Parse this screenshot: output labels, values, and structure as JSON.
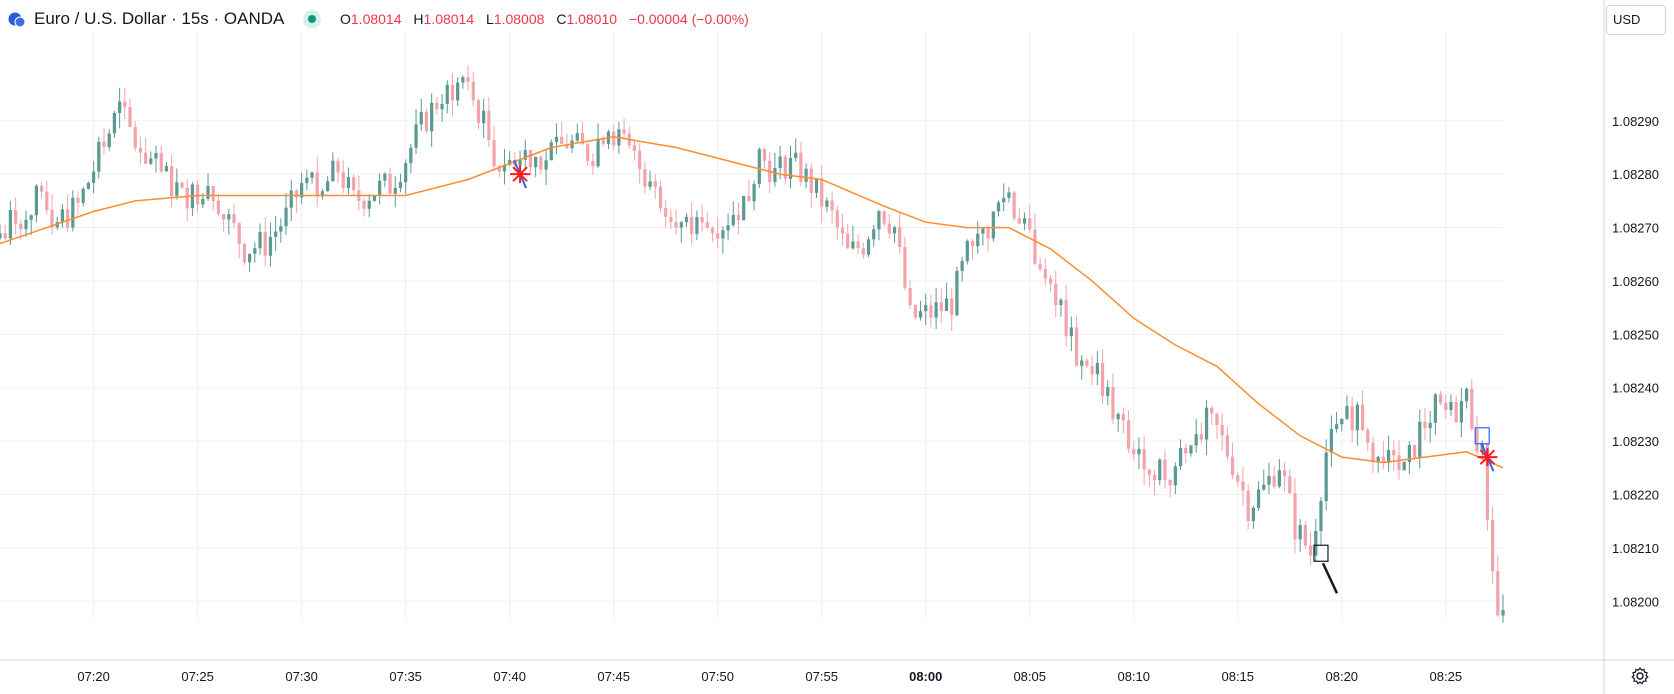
{
  "header": {
    "symbol": "Euro / U.S. Dollar · 15s · OANDA",
    "ohlc": {
      "o_label": "O",
      "o": "1.08014",
      "h_label": "H",
      "h": "1.08014",
      "l_label": "L",
      "l": "1.08008",
      "c_label": "C",
      "c": "1.08010",
      "change": "−0.00004 (−0.00%)"
    }
  },
  "currency_button": "USD",
  "colors": {
    "up": "#5b9a93",
    "down": "#f3a3ac",
    "ma": "#ff8c2e",
    "grid": "#eef0f3",
    "text": "#131722"
  },
  "chart_data": {
    "type": "candlestick",
    "title": "Euro / U.S. Dollar · 15s · OANDA",
    "x_ticks": [
      "07:20",
      "07:25",
      "07:30",
      "07:35",
      "07:40",
      "07:45",
      "07:50",
      "07:55",
      "08:00",
      "08:05",
      "08:10",
      "08:15",
      "08:20",
      "08:25"
    ],
    "x_tick_bold": "08:00",
    "y_ticks": [
      "1.08290",
      "1.08280",
      "1.08270",
      "1.08260",
      "1.08250",
      "1.08240",
      "1.08230",
      "1.08220",
      "1.08210",
      "1.08200"
    ],
    "ylim": [
      1.081965,
      1.083055
    ],
    "time_range": [
      "07:15:30",
      "08:27:45"
    ],
    "grid": true,
    "price_path": [
      [
        "07:15:30",
        1.08268
      ],
      [
        "07:16:30",
        1.08272
      ],
      [
        "07:17:30",
        1.08275
      ],
      [
        "07:18:30",
        1.08271
      ],
      [
        "07:19:30",
        1.08274
      ],
      [
        "07:20:15",
        1.08281
      ],
      [
        "07:21:00",
        1.08288
      ],
      [
        "07:21:30",
        1.08292
      ],
      [
        "07:22:15",
        1.08286
      ],
      [
        "07:23:00",
        1.08282
      ],
      [
        "07:24:00",
        1.08278
      ],
      [
        "07:25:00",
        1.08276
      ],
      [
        "07:25:45",
        1.08279
      ],
      [
        "07:26:30",
        1.08273
      ],
      [
        "07:27:30",
        1.08266
      ],
      [
        "07:28:30",
        1.08267
      ],
      [
        "07:29:30",
        1.08272
      ],
      [
        "07:30:15",
        1.08278
      ],
      [
        "07:31:00",
        1.08276
      ],
      [
        "07:32:00",
        1.08281
      ],
      [
        "07:32:45",
        1.08275
      ],
      [
        "07:33:45",
        1.08277
      ],
      [
        "07:34:30",
        1.08278
      ],
      [
        "07:35:15",
        1.08283
      ],
      [
        "07:36:00",
        1.08289
      ],
      [
        "07:37:00",
        1.08295
      ],
      [
        "07:38:00",
        1.08297
      ],
      [
        "07:38:45",
        1.08292
      ],
      [
        "07:39:30",
        1.08284
      ],
      [
        "07:40:15",
        1.08282
      ],
      [
        "07:41:00",
        1.08284
      ],
      [
        "07:42:00",
        1.08283
      ],
      [
        "07:43:00",
        1.08286
      ],
      [
        "07:44:00",
        1.08284
      ],
      [
        "07:45:00",
        1.08289
      ],
      [
        "07:46:00",
        1.08284
      ],
      [
        "07:46:45",
        1.0828
      ],
      [
        "07:47:45",
        1.08275
      ],
      [
        "07:48:30",
        1.08269
      ],
      [
        "07:49:30",
        1.0827
      ],
      [
        "07:50:30",
        1.08271
      ],
      [
        "07:51:30",
        1.08275
      ],
      [
        "07:52:15",
        1.08284
      ],
      [
        "07:53:00",
        1.0828
      ],
      [
        "07:53:45",
        1.08283
      ],
      [
        "07:54:45",
        1.08278
      ],
      [
        "07:55:45",
        1.08272
      ],
      [
        "07:56:30",
        1.08265
      ],
      [
        "07:57:15",
        1.08267
      ],
      [
        "07:58:00",
        1.08274
      ],
      [
        "07:58:45",
        1.0827
      ],
      [
        "07:59:30",
        1.08253
      ],
      [
        "08:00:30",
        1.08254
      ],
      [
        "08:01:30",
        1.08256
      ],
      [
        "08:02:15",
        1.08265
      ],
      [
        "08:03:00",
        1.08268
      ],
      [
        "08:04:00",
        1.08276
      ],
      [
        "08:05:00",
        1.08272
      ],
      [
        "08:05:45",
        1.08262
      ],
      [
        "08:06:30",
        1.08256
      ],
      [
        "08:07:30",
        1.08246
      ],
      [
        "08:08:30",
        1.08243
      ],
      [
        "08:09:15",
        1.08236
      ],
      [
        "08:10:00",
        1.08229
      ],
      [
        "08:11:00",
        1.08227
      ],
      [
        "08:12:00",
        1.08223
      ],
      [
        "08:12:45",
        1.0823
      ],
      [
        "08:13:30",
        1.08234
      ],
      [
        "08:14:15",
        1.08232
      ],
      [
        "08:15:00",
        1.08226
      ],
      [
        "08:15:45",
        1.08218
      ],
      [
        "08:16:30",
        1.08221
      ],
      [
        "08:17:15",
        1.08226
      ],
      [
        "08:18:00",
        1.08214
      ],
      [
        "08:18:45",
        1.08209
      ],
      [
        "08:19:30",
        1.08228
      ],
      [
        "08:20:15",
        1.08233
      ],
      [
        "08:21:00",
        1.08236
      ],
      [
        "08:21:45",
        1.08229
      ],
      [
        "08:22:30",
        1.08227
      ],
      [
        "08:23:15",
        1.08224
      ],
      [
        "08:24:00",
        1.08232
      ],
      [
        "08:24:45",
        1.08236
      ],
      [
        "08:25:30",
        1.08235
      ],
      [
        "08:26:15",
        1.08238
      ],
      [
        "08:27:00",
        1.08227
      ],
      [
        "08:27:45",
        1.08197
      ]
    ],
    "ma_path": [
      [
        "07:15:30",
        1.08267
      ],
      [
        "07:17:00",
        1.08269
      ],
      [
        "07:20:00",
        1.08273
      ],
      [
        "07:22:00",
        1.08275
      ],
      [
        "07:25:00",
        1.08276
      ],
      [
        "07:28:00",
        1.08276
      ],
      [
        "07:32:00",
        1.08276
      ],
      [
        "07:35:00",
        1.08276
      ],
      [
        "07:38:00",
        1.08279
      ],
      [
        "07:40:00",
        1.08282
      ],
      [
        "07:42:00",
        1.08285
      ],
      [
        "07:45:00",
        1.08287
      ],
      [
        "07:48:00",
        1.08285
      ],
      [
        "07:51:00",
        1.08282
      ],
      [
        "07:53:00",
        1.0828
      ],
      [
        "07:55:00",
        1.08279
      ],
      [
        "07:58:00",
        1.08274
      ],
      [
        "08:00:00",
        1.08271
      ],
      [
        "08:02:00",
        1.0827
      ],
      [
        "08:04:00",
        1.0827
      ],
      [
        "08:06:00",
        1.08266
      ],
      [
        "08:08:00",
        1.0826
      ],
      [
        "08:10:00",
        1.08253
      ],
      [
        "08:12:00",
        1.08248
      ],
      [
        "08:14:00",
        1.08244
      ],
      [
        "08:16:00",
        1.08237
      ],
      [
        "08:18:00",
        1.08231
      ],
      [
        "08:20:00",
        1.08227
      ],
      [
        "08:22:00",
        1.08226
      ],
      [
        "08:24:00",
        1.08227
      ],
      [
        "08:26:00",
        1.08228
      ],
      [
        "08:27:45",
        1.08225
      ]
    ],
    "annotations": [
      {
        "kind": "star-marker",
        "time": "07:40:30",
        "price": 1.0828
      },
      {
        "kind": "star-marker",
        "time": "08:27:00",
        "price": 1.08227
      },
      {
        "kind": "box-marker",
        "time": "08:19:00",
        "price": 1.08209
      },
      {
        "kind": "box-marker",
        "time": "08:26:45",
        "price": 1.08231
      }
    ]
  }
}
